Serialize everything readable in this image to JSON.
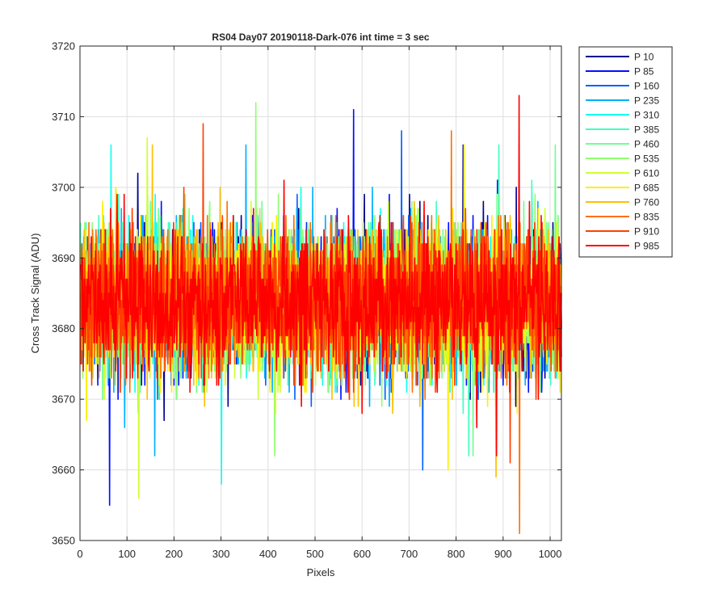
{
  "chart_data": {
    "type": "line",
    "title": "RS04 Day07 20190118-Dark-076 int time = 3 sec",
    "xlabel": "Pixels",
    "ylabel": "Cross Track Signal (ADU)",
    "xlim": [
      0,
      1024
    ],
    "ylim": [
      3650,
      3720
    ],
    "xticks": [
      0,
      100,
      200,
      300,
      400,
      500,
      600,
      700,
      800,
      900,
      1000
    ],
    "yticks": [
      3650,
      3660,
      3670,
      3680,
      3690,
      3700,
      3710,
      3720
    ],
    "grid": true,
    "legend_position": "outside-right",
    "x_count": 1024,
    "baseline_mean": 3684,
    "noise_sigma": 5,
    "series": [
      {
        "name": "P 10",
        "color": "#00008f",
        "max": 3706,
        "min": 3667
      },
      {
        "name": "P 85",
        "color": "#0010ff",
        "max": 3711,
        "min": 3655
      },
      {
        "name": "P 160",
        "color": "#0060ff",
        "max": 3708,
        "min": 3660
      },
      {
        "name": "P 235",
        "color": "#00afff",
        "max": 3706,
        "min": 3662
      },
      {
        "name": "P 310",
        "color": "#10ffef",
        "max": 3706,
        "min": 3658
      },
      {
        "name": "P 385",
        "color": "#40ffbf",
        "max": 3706,
        "min": 3662
      },
      {
        "name": "P 460",
        "color": "#70ff8f",
        "max": 3706,
        "min": 3662
      },
      {
        "name": "P 535",
        "color": "#8fff70",
        "max": 3712,
        "min": 3662
      },
      {
        "name": "P 610",
        "color": "#cfff30",
        "max": 3707,
        "min": 3656
      },
      {
        "name": "P 685",
        "color": "#ffef00",
        "max": 3706,
        "min": 3660
      },
      {
        "name": "P 760",
        "color": "#ffbf00",
        "max": 3706,
        "min": 3659
      },
      {
        "name": "P 835",
        "color": "#ff7000",
        "max": 3708,
        "min": 3651
      },
      {
        "name": "P 910",
        "color": "#ff4000",
        "max": 3709,
        "min": 3661
      },
      {
        "name": "P 985",
        "color": "#ff0000",
        "max": 3713,
        "min": 3662
      }
    ]
  }
}
